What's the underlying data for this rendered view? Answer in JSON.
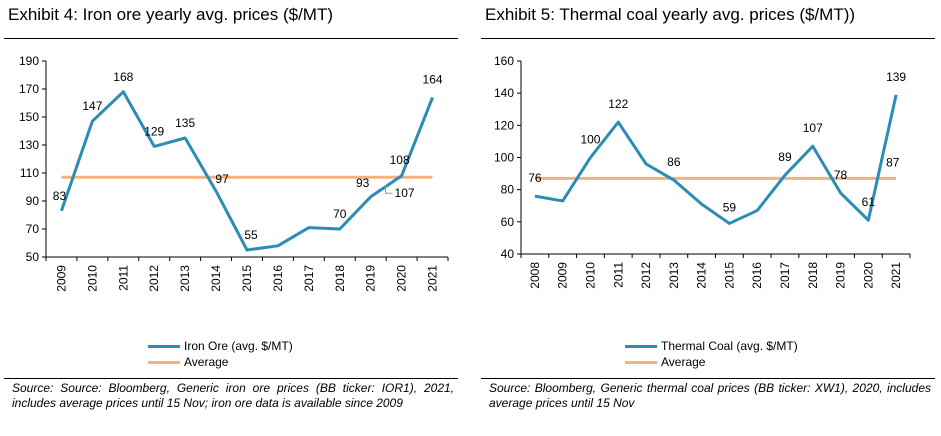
{
  "colors": {
    "series": "#2b8cb6",
    "average": "#f5b17e",
    "axis": "#000000"
  },
  "panels": [
    {
      "title": "Exhibit 4: Iron ore yearly avg. prices ($/MT)",
      "legend": {
        "series": "Iron Ore (avg. $/MT)",
        "average": "Average"
      },
      "source": "Source: Source: Bloomberg, Generic iron ore prices (BB ticker: IOR1), 2021, includes average prices until 15 Nov; iron ore data is available since 2009"
    },
    {
      "title": "Exhibit 5: Thermal coal yearly avg. prices ($/MT))",
      "legend": {
        "series": "Thermal Coal (avg. $/MT)",
        "average": "Average"
      },
      "source": "Source: Bloomberg, Generic thermal coal prices (BB ticker: XW1), 2020, includes average prices until 15 Nov"
    }
  ],
  "chart_data": [
    {
      "type": "line",
      "title": "Exhibit 4: Iron ore yearly avg. prices ($/MT)",
      "categories": [
        "2009",
        "2010",
        "2011",
        "2012",
        "2013",
        "2014",
        "2015",
        "2016",
        "2017",
        "2018",
        "2019",
        "2020",
        "2021"
      ],
      "series": [
        {
          "name": "Iron Ore (avg. $/MT)",
          "values": [
            83,
            147,
            168,
            129,
            135,
            97,
            55,
            58,
            71,
            70,
            93,
            108,
            164
          ],
          "data_labels": [
            "83",
            "147",
            "168",
            "129",
            "135",
            "97",
            "55",
            "",
            "",
            "70",
            "93",
            "108",
            "164"
          ]
        },
        {
          "name": "Average",
          "values": [
            107,
            107,
            107,
            107,
            107,
            107,
            107,
            107,
            107,
            107,
            107,
            107,
            107
          ]
        }
      ],
      "average_label": "107",
      "ylim": [
        50,
        190
      ],
      "yticks": [
        50,
        70,
        90,
        110,
        130,
        150,
        170,
        190
      ],
      "xlabel": "",
      "ylabel": "",
      "grid": false,
      "legend_position": "bottom"
    },
    {
      "type": "line",
      "title": "Exhibit 5: Thermal coal yearly avg. prices ($/MT))",
      "categories": [
        "2008",
        "2009",
        "2010",
        "2011",
        "2012",
        "2013",
        "2014",
        "2015",
        "2016",
        "2017",
        "2018",
        "2019",
        "2020",
        "2021"
      ],
      "series": [
        {
          "name": "Thermal Coal (avg. $/MT)",
          "values": [
            76,
            73,
            100,
            122,
            96,
            86,
            71,
            59,
            67,
            89,
            107,
            78,
            61,
            139
          ],
          "data_labels": [
            "76",
            "",
            "100",
            "122",
            "",
            "86",
            "",
            "59",
            "",
            "89",
            "107",
            "78",
            "61",
            "139"
          ]
        },
        {
          "name": "Average",
          "values": [
            87,
            87,
            87,
            87,
            87,
            87,
            87,
            87,
            87,
            87,
            87,
            87,
            87,
            87
          ]
        }
      ],
      "average_label": "87",
      "ylim": [
        40,
        160
      ],
      "yticks": [
        40,
        60,
        80,
        100,
        120,
        140,
        160
      ],
      "xlabel": "",
      "ylabel": "",
      "grid": false,
      "legend_position": "bottom"
    }
  ]
}
